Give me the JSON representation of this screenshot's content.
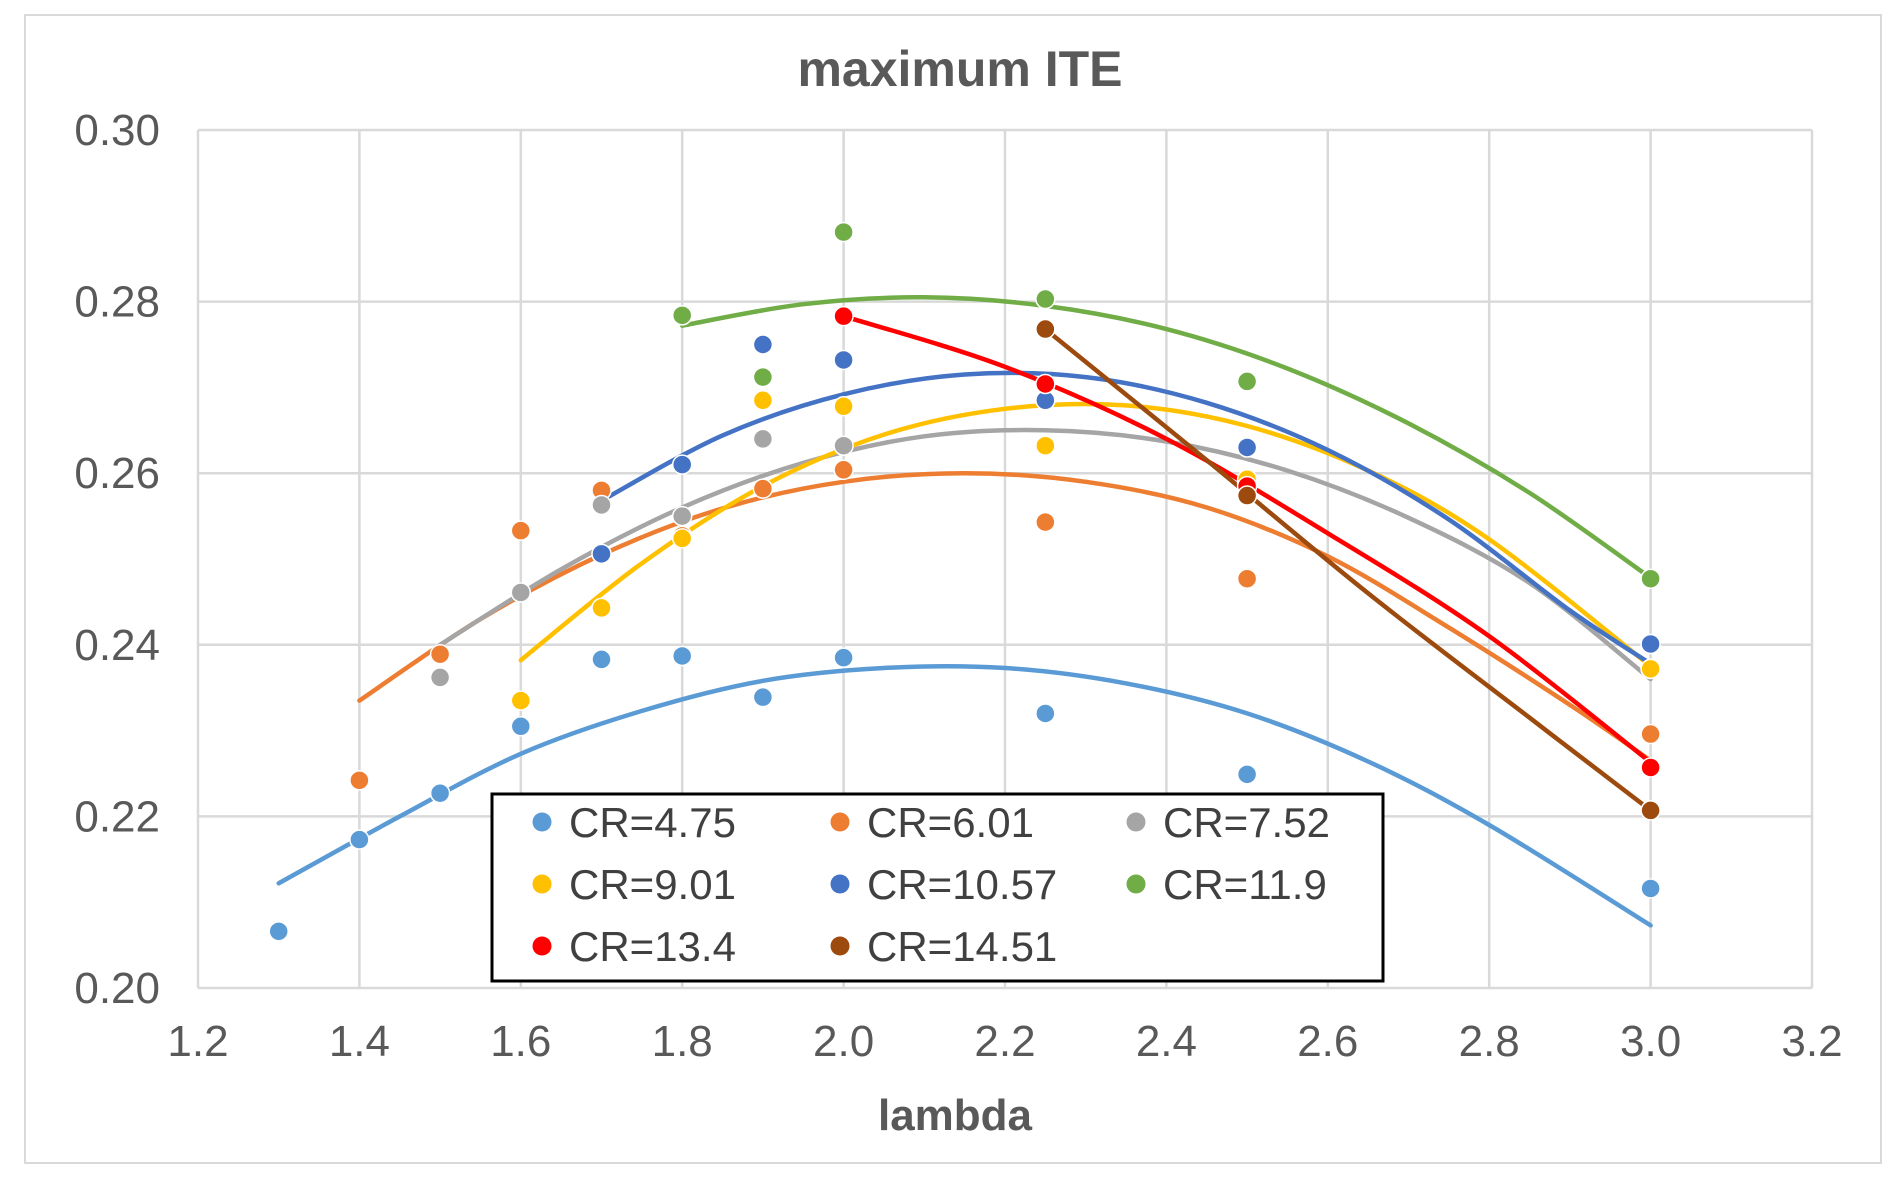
{
  "chart_data": {
    "type": "scatter",
    "title": "maximum ITE",
    "xlabel": "lambda",
    "ylabel": "",
    "xlim": [
      1.2,
      3.2
    ],
    "ylim": [
      0.2,
      0.3
    ],
    "xticks": [
      "1.2",
      "1.4",
      "1.6",
      "1.8",
      "2.0",
      "2.2",
      "2.4",
      "2.6",
      "2.8",
      "3.0",
      "3.2"
    ],
    "yticks": [
      "0.20",
      "0.22",
      "0.24",
      "0.26",
      "0.28",
      "0.30"
    ],
    "grid": true,
    "legend_position": "inside-bottom-center",
    "series": [
      {
        "name": "CR=4.75",
        "color": "#5b9bd5",
        "fit": "polynomial-2",
        "points": [
          [
            1.3,
            0.2066
          ],
          [
            1.4,
            0.2173
          ],
          [
            1.5,
            0.2227
          ],
          [
            1.6,
            0.2305
          ],
          [
            1.7,
            0.2383
          ],
          [
            1.8,
            0.2387
          ],
          [
            1.9,
            0.2339
          ],
          [
            2.0,
            0.2385
          ],
          [
            2.25,
            0.232
          ],
          [
            2.5,
            0.2249
          ],
          [
            3.0,
            0.2116
          ]
        ],
        "fit_curve": {
          "x": [
            1.3,
            1.45,
            1.6,
            1.75,
            1.9,
            2.05,
            2.2,
            2.35,
            2.5,
            2.65,
            2.8,
            3.0
          ],
          "y": [
            0.2122,
            0.22,
            0.2273,
            0.2323,
            0.2358,
            0.2373,
            0.2373,
            0.2355,
            0.232,
            0.2264,
            0.219,
            0.2073
          ]
        }
      },
      {
        "name": "CR=6.01",
        "color": "#ed7d31",
        "fit": "polynomial-2",
        "points": [
          [
            1.4,
            0.2242
          ],
          [
            1.5,
            0.2389
          ],
          [
            1.6,
            0.2533
          ],
          [
            1.7,
            0.258
          ],
          [
            1.8,
            0.2527
          ],
          [
            1.9,
            0.2582
          ],
          [
            2.0,
            0.2604
          ],
          [
            2.25,
            0.2543
          ],
          [
            2.5,
            0.2477
          ],
          [
            3.0,
            0.2296
          ]
        ],
        "fit_curve": {
          "x": [
            1.4,
            1.55,
            1.7,
            1.85,
            2.0,
            2.15,
            2.3,
            2.45,
            2.6,
            2.75,
            2.9,
            3.0
          ],
          "y": [
            0.2335,
            0.243,
            0.2505,
            0.2559,
            0.259,
            0.26,
            0.259,
            0.256,
            0.2503,
            0.242,
            0.233,
            0.2265
          ]
        }
      },
      {
        "name": "CR=7.52",
        "color": "#a5a5a5",
        "fit": "polynomial-2",
        "points": [
          [
            1.5,
            0.2362
          ],
          [
            1.6,
            0.2461
          ],
          [
            1.7,
            0.2563
          ],
          [
            1.8,
            0.255
          ],
          [
            1.9,
            0.264
          ],
          [
            2.0,
            0.2632
          ],
          [
            2.5,
            0.2588
          ],
          [
            3.0,
            0.2372
          ]
        ],
        "fit_curve": {
          "x": [
            1.5,
            1.65,
            1.8,
            1.95,
            2.1,
            2.25,
            2.4,
            2.55,
            2.7,
            2.85,
            3.0
          ],
          "y": [
            0.24,
            0.2488,
            0.256,
            0.2612,
            0.2643,
            0.265,
            0.2637,
            0.2603,
            0.2548,
            0.2472,
            0.236
          ]
        }
      },
      {
        "name": "CR=9.01",
        "color": "#ffc000",
        "fit": "polynomial-2",
        "points": [
          [
            1.6,
            0.2335
          ],
          [
            1.7,
            0.2443
          ],
          [
            1.8,
            0.2524
          ],
          [
            1.9,
            0.2685
          ],
          [
            2.0,
            0.2678
          ],
          [
            2.25,
            0.2632
          ],
          [
            2.5,
            0.2593
          ],
          [
            3.0,
            0.2372
          ]
        ],
        "fit_curve": {
          "x": [
            1.6,
            1.75,
            1.9,
            2.05,
            2.2,
            2.35,
            2.5,
            2.65,
            2.8,
            3.0
          ],
          "y": [
            0.2382,
            0.2495,
            0.2585,
            0.2645,
            0.2675,
            0.2679,
            0.2655,
            0.2603,
            0.2523,
            0.2375
          ]
        }
      },
      {
        "name": "CR=10.57",
        "color": "#4472c4",
        "fit": "polynomial-2",
        "points": [
          [
            1.7,
            0.2506
          ],
          [
            1.8,
            0.261
          ],
          [
            1.9,
            0.275
          ],
          [
            2.0,
            0.2732
          ],
          [
            2.25,
            0.2685
          ],
          [
            2.5,
            0.263
          ],
          [
            3.0,
            0.2401
          ]
        ],
        "fit_curve": {
          "x": [
            1.7,
            1.85,
            2.0,
            2.15,
            2.3,
            2.45,
            2.6,
            2.75,
            2.9,
            3.0
          ],
          "y": [
            0.2568,
            0.2644,
            0.2692,
            0.2715,
            0.2712,
            0.2682,
            0.2627,
            0.2546,
            0.244,
            0.2378
          ]
        }
      },
      {
        "name": "CR=11.9",
        "color": "#70ad47",
        "fit": "polynomial-2",
        "points": [
          [
            1.8,
            0.2784
          ],
          [
            1.9,
            0.2712
          ],
          [
            2.0,
            0.2881
          ],
          [
            2.25,
            0.2803
          ],
          [
            2.5,
            0.2707
          ],
          [
            3.0,
            0.2477
          ]
        ],
        "fit_curve": {
          "x": [
            1.8,
            1.95,
            2.1,
            2.25,
            2.4,
            2.55,
            2.7,
            2.85,
            3.0
          ],
          "y": [
            0.2772,
            0.2797,
            0.2805,
            0.2795,
            0.2768,
            0.2722,
            0.2658,
            0.2577,
            0.2478
          ]
        }
      },
      {
        "name": "CR=13.4",
        "color": "#ff0000",
        "fit": "polynomial-2",
        "points": [
          [
            2.0,
            0.2783
          ],
          [
            2.25,
            0.2704
          ],
          [
            2.5,
            0.2585
          ],
          [
            3.0,
            0.2257
          ]
        ],
        "fit_curve": {
          "x": [
            2.0,
            2.2,
            2.4,
            2.6,
            2.8,
            3.0
          ],
          "y": [
            0.2783,
            0.2724,
            0.264,
            0.253,
            0.241,
            0.2263
          ]
        }
      },
      {
        "name": "CR=14.51",
        "color": "#9c4a0e",
        "fit": "polynomial-2",
        "points": [
          [
            2.25,
            0.2768
          ],
          [
            2.5,
            0.2574
          ],
          [
            3.0,
            0.2207
          ]
        ],
        "fit_curve": {
          "x": [
            2.25,
            2.45,
            2.65,
            2.85,
            3.0
          ],
          "y": [
            0.2768,
            0.2615,
            0.246,
            0.2315,
            0.2207
          ]
        }
      }
    ]
  }
}
